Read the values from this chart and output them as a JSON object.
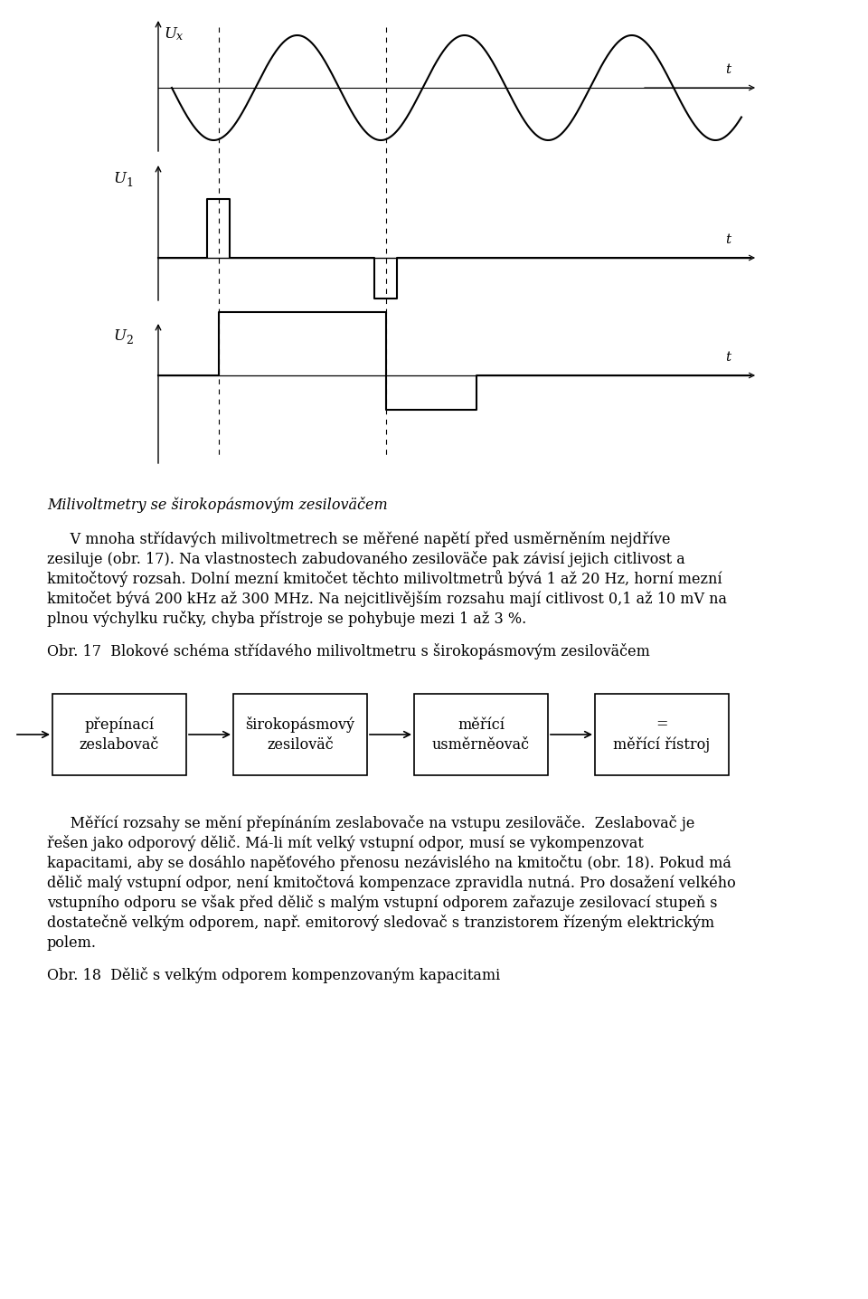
{
  "bg_color": "#ffffff",
  "fig_width": 9.6,
  "fig_height": 14.36,
  "title_italic": "Milivoltmetry se širokopásmovým zesiloväčem",
  "block_labels": [
    [
      "přepínací",
      "zeslabovač"
    ],
    [
      "širokopásmový",
      "zesiloväč"
    ],
    [
      "měřící",
      "usměrněovač"
    ],
    [
      "=",
      "měřící řístroj"
    ]
  ],
  "para1_lines": [
    "     V mnoha střídavých milivoltmetrech se měřené napětí před usměrněním nejdříve",
    "zesiluje (obr. 17). Na vlastnostech zabudovaného zesiloväče pak závisí jejich citlivost a",
    "kmitočtový rozsah. Dolní mezní kmitočet těchto milivoltmetrů bývá 1 až 20 Hz, horní mezní",
    "kmitočet bývá 200 kHz až 300 MHz. Na nejcitlivějším rozsahu mají citlivost 0,1 až 10 mV na",
    "plnou výchylku ručky, chyba přístroje se pohybuje mezi 1 až 3 %."
  ],
  "obr17_label": "Obr. 17  Blokové schéma střídavého milivoltmetru s širokopásmovým zesiloväčem",
  "para2_lines": [
    "     Měřící rozsahy se mění přepínáním zeslabovače na vstupu zesiloväče.  Zeslabovač je",
    "řešen jako odporový dělič. Má-li mít velký vstupní odpor, musí se vykompenzovat",
    "kapacitami, aby se dosáhlo napěťového přenosu nezávislého na kmitočtu (obr. 18). Pokud má",
    "dělič malý vstupní odpor, není kmitočtová kompenzace zpravidla nutná. Pro dosažení velkého",
    "vstupního odporu se však před dělič s malým vstupní odporem zařazuje zesilovací stupeň s",
    "dostatečně velkým odporem, např. emitorový sledovač s tranzistorem řízeným elektrickým",
    "polem."
  ],
  "obr18_label": "Obr. 18  Dělič s velkým odporem kompenzovaným kapacitami"
}
